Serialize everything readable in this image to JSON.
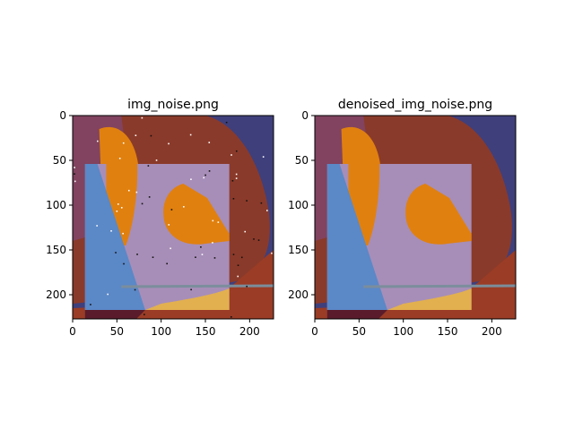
{
  "chart_data": [
    {
      "type": "image",
      "title": "img_noise.png",
      "xlim": [
        0,
        227
      ],
      "ylim": [
        227,
        0
      ],
      "xticks": [
        0,
        50,
        100,
        150,
        200
      ],
      "yticks": [
        0,
        50,
        100,
        150,
        200
      ],
      "noisy": true
    },
    {
      "type": "image",
      "title": "denoised_img_noise.png",
      "xlim": [
        0,
        227
      ],
      "ylim": [
        227,
        0
      ],
      "xticks": [
        0,
        50,
        100,
        150,
        200
      ],
      "yticks": [
        0,
        50,
        100,
        150,
        200
      ],
      "noisy": false
    }
  ],
  "colors": {
    "background_navy": "#3f3f7c",
    "dark_red": "#8a3a2a",
    "rust": "#9a3c26",
    "orange": "#e0800f",
    "lavender": "#a78eb8",
    "blue": "#5b88c7",
    "yellow": "#e2b04f",
    "maroon": "#5a1c2c",
    "gray_line": "#7b8e9c"
  }
}
